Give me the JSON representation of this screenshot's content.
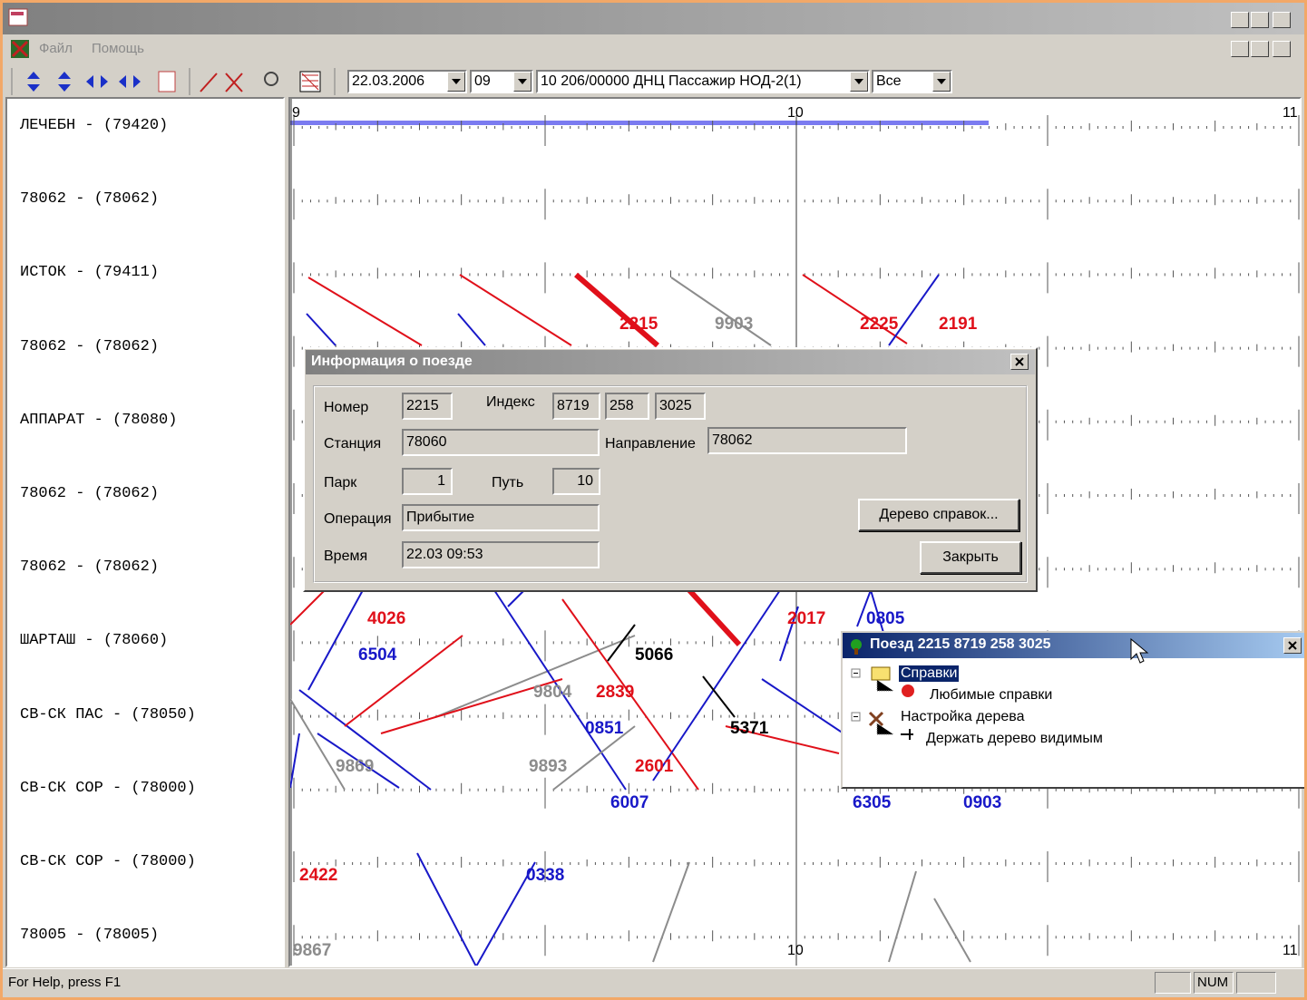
{
  "window": {
    "menu": [
      "Файл",
      "Помощь"
    ]
  },
  "toolbar": {
    "date": "22.03.2006",
    "hour": "09",
    "section": "10 206/00000 ДНЦ Пассажир НОД-2(1)",
    "filter": "Все"
  },
  "stations": [
    "ЛЕЧЕБН - (79420)",
    "78062 - (78062)",
    "ИСТОК - (79411)",
    "78062 - (78062)",
    "АППАРАТ - (78080)",
    "78062 - (78062)",
    "78062 - (78062)",
    "ШАРТАШ - (78060)",
    "СВ-СК ПАС - (78050)",
    "СВ-СК СОР - (78000)",
    "СВ-СК СОР - (78000)",
    "78005 - (78005)"
  ],
  "timeline": {
    "top_labels": [
      "9",
      "10",
      "11"
    ],
    "bottom_labels": [
      "10",
      "11"
    ]
  },
  "trains": [
    {
      "label": "2215",
      "color": "#e0101a"
    },
    {
      "label": "9903",
      "color": "#8c8c8c"
    },
    {
      "label": "2225",
      "color": "#e0101a"
    },
    {
      "label": "2191",
      "color": "#e0101a"
    },
    {
      "label": "4026",
      "color": "#e0101a"
    },
    {
      "label": "2017",
      "color": "#e0101a"
    },
    {
      "label": "0805",
      "color": "#1818c8"
    },
    {
      "label": "6504",
      "color": "#1818c8"
    },
    {
      "label": "5066",
      "color": "#000000"
    },
    {
      "label": "9804",
      "color": "#8c8c8c"
    },
    {
      "label": "2839",
      "color": "#e0101a"
    },
    {
      "label": "0851",
      "color": "#1818c8"
    },
    {
      "label": "5371",
      "color": "#000000"
    },
    {
      "label": "9869",
      "color": "#8c8c8c"
    },
    {
      "label": "9893",
      "color": "#8c8c8c"
    },
    {
      "label": "2601",
      "color": "#e0101a"
    },
    {
      "label": "6007",
      "color": "#1818c8"
    },
    {
      "label": "6305",
      "color": "#1818c8"
    },
    {
      "label": "0903",
      "color": "#1818c8"
    },
    {
      "label": "2422",
      "color": "#e0101a"
    },
    {
      "label": "0338",
      "color": "#1818c8"
    },
    {
      "label": "9867",
      "color": "#8c8c8c"
    }
  ],
  "train_info": {
    "title": "Информация о поезде",
    "number_label": "Номер",
    "number": "2215",
    "index_label": "Индекс",
    "index": [
      "8719",
      "258",
      "3025"
    ],
    "station_label": "Станция",
    "station": "78060",
    "direction_label": "Направление",
    "direction": "78062",
    "park_label": "Парк",
    "park": "1",
    "track_label": "Путь",
    "track": "10",
    "operation_label": "Операция",
    "operation": "Прибытие",
    "time_label": "Время",
    "time": "22.03 09:53",
    "tree_button": "Дерево справок...",
    "close_button": "Закрыть"
  },
  "tree_popup": {
    "title": "Поезд 2215 8719 258 3025",
    "items": [
      "Справки",
      "Любимые справки",
      "Настройка дерева",
      "Держать дерево видимым"
    ]
  },
  "status_bar": {
    "help": "For Help, press F1",
    "num": "NUM"
  }
}
